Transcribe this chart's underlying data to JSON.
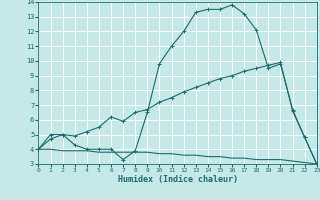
{
  "xlabel": "Humidex (Indice chaleur)",
  "bg_color": "#c5e8e8",
  "grid_color": "#b0d8d8",
  "line_color": "#1e6b6b",
  "line1_x": [
    0,
    1,
    2,
    3,
    4,
    5,
    6,
    7,
    8,
    9,
    10,
    11,
    12,
    13,
    14,
    15,
    16,
    17,
    18,
    19,
    20,
    21,
    22,
    23
  ],
  "line1_y": [
    4.0,
    5.0,
    5.0,
    4.3,
    4.0,
    4.0,
    4.0,
    3.3,
    3.9,
    6.5,
    9.8,
    11.0,
    12.0,
    13.3,
    13.5,
    13.5,
    13.8,
    13.2,
    12.1,
    9.5,
    9.8,
    6.7,
    4.8,
    3.0
  ],
  "line2_x": [
    0,
    1,
    2,
    3,
    4,
    5,
    6,
    7,
    8,
    9,
    10,
    11,
    12,
    13,
    14,
    15,
    16,
    17,
    18,
    19,
    20,
    21,
    22,
    23
  ],
  "line2_y": [
    4.0,
    4.7,
    5.0,
    4.9,
    5.2,
    5.5,
    6.2,
    5.9,
    6.5,
    6.7,
    7.2,
    7.5,
    7.9,
    8.2,
    8.5,
    8.8,
    9.0,
    9.3,
    9.5,
    9.7,
    9.9,
    6.6,
    4.8,
    3.0
  ],
  "line3_x": [
    0,
    1,
    2,
    3,
    4,
    5,
    6,
    7,
    8,
    9,
    10,
    11,
    12,
    13,
    14,
    15,
    16,
    17,
    18,
    19,
    20,
    21,
    22,
    23
  ],
  "line3_y": [
    4.0,
    4.0,
    3.9,
    3.9,
    3.9,
    3.8,
    3.8,
    3.8,
    3.8,
    3.8,
    3.7,
    3.7,
    3.6,
    3.6,
    3.5,
    3.5,
    3.4,
    3.4,
    3.3,
    3.3,
    3.3,
    3.2,
    3.1,
    3.0
  ],
  "xlim": [
    0,
    23
  ],
  "ylim": [
    3,
    14
  ],
  "yticks": [
    3,
    4,
    5,
    6,
    7,
    8,
    9,
    10,
    11,
    12,
    13,
    14
  ],
  "xticks": [
    0,
    1,
    2,
    3,
    4,
    5,
    6,
    7,
    8,
    9,
    10,
    11,
    12,
    13,
    14,
    15,
    16,
    17,
    18,
    19,
    20,
    21,
    22,
    23
  ]
}
